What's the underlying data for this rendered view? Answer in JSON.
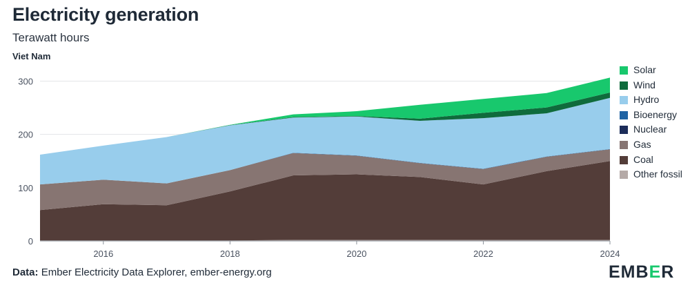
{
  "header": {
    "title": "Electricity generation",
    "subtitle": "Terawatt hours",
    "region": "Viet Nam"
  },
  "footer": {
    "source_label": "Data:",
    "source_text": "Ember Electricity Data Explorer, ember-energy.org"
  },
  "logo": {
    "text_start": "EMB",
    "text_accent": "E",
    "text_end": "R"
  },
  "colors": {
    "solar": "#18c86d",
    "wind": "#0f6b3c",
    "hydro": "#98cdec",
    "bioenergy": "#1f63a3",
    "nuclear": "#1c2d5a",
    "gas": "#877572",
    "coal": "#533d39",
    "other_fossil": "#b5aaa7",
    "grid": "#e3e5e8",
    "axis": "#8a9099",
    "tick_text": "#4a5260"
  },
  "chart_data": {
    "type": "area",
    "stacked": true,
    "title": "Electricity generation",
    "ylabel": "Terawatt hours",
    "x": [
      2015,
      2016,
      2017,
      2018,
      2019,
      2020,
      2021,
      2022,
      2023,
      2024
    ],
    "xlim": [
      2015,
      2024
    ],
    "ylim": [
      0,
      320
    ],
    "xticks": [
      "2016",
      "2018",
      "2020",
      "2022",
      "2024"
    ],
    "yticks": [
      "0",
      "100",
      "200",
      "300"
    ],
    "grid": true,
    "legend_position": "right",
    "series": [
      {
        "key": "other_fossil",
        "name": "Other fossil",
        "values": [
          1,
          1,
          1,
          1,
          2,
          2,
          2,
          2,
          2,
          2
        ]
      },
      {
        "key": "coal",
        "name": "Coal",
        "values": [
          57,
          68,
          66,
          92,
          121,
          123,
          118,
          104,
          129,
          148
        ]
      },
      {
        "key": "gas",
        "name": "Gas",
        "values": [
          48,
          46,
          41,
          40,
          42,
          35,
          26,
          29,
          27,
          22
        ]
      },
      {
        "key": "nuclear",
        "name": "Nuclear",
        "values": [
          0,
          0,
          0,
          0,
          0,
          0,
          0,
          0,
          0,
          0
        ]
      },
      {
        "key": "bioenergy",
        "name": "Bioenergy",
        "values": [
          0,
          0,
          0,
          0,
          0.5,
          0.5,
          0.5,
          0.5,
          0.5,
          0.5
        ]
      },
      {
        "key": "hydro",
        "name": "Hydro",
        "values": [
          56,
          64,
          87,
          84,
          66,
          73,
          79,
          95,
          81,
          96
        ]
      },
      {
        "key": "wind",
        "name": "Wind",
        "values": [
          0,
          0,
          0,
          0.5,
          1,
          1,
          4,
          10,
          11,
          10
        ]
      },
      {
        "key": "solar",
        "name": "Solar",
        "values": [
          0,
          0,
          0,
          0.5,
          5,
          9,
          26,
          26,
          27,
          28
        ]
      }
    ],
    "legend_order": [
      "solar",
      "wind",
      "hydro",
      "bioenergy",
      "nuclear",
      "gas",
      "coal",
      "other_fossil"
    ],
    "legend": [
      {
        "key": "solar",
        "label": "Solar"
      },
      {
        "key": "wind",
        "label": "Wind"
      },
      {
        "key": "hydro",
        "label": "Hydro"
      },
      {
        "key": "bioenergy",
        "label": "Bioenergy"
      },
      {
        "key": "nuclear",
        "label": "Nuclear"
      },
      {
        "key": "gas",
        "label": "Gas"
      },
      {
        "key": "coal",
        "label": "Coal"
      },
      {
        "key": "other_fossil",
        "label": "Other fossil"
      }
    ]
  }
}
